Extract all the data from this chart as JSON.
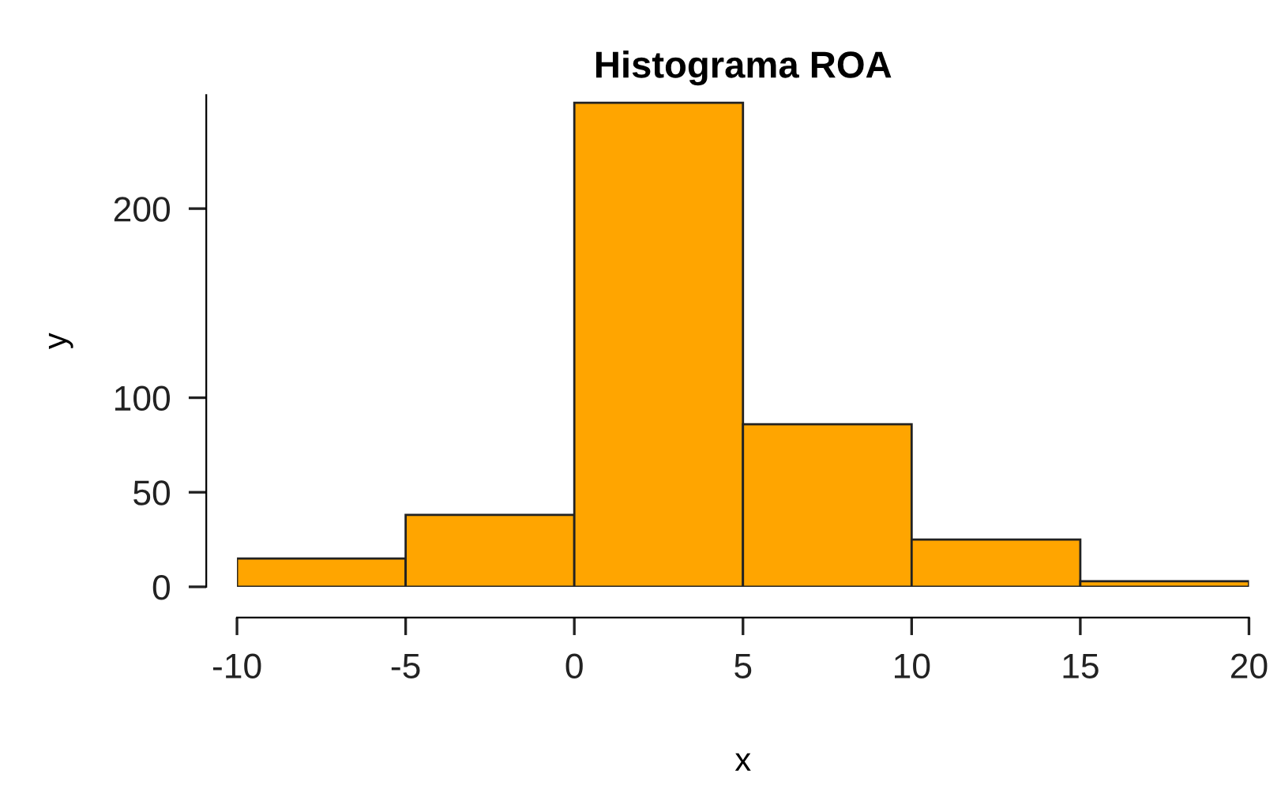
{
  "chart_data": {
    "type": "histogram",
    "title": "Histograma ROA",
    "xlabel": "x",
    "ylabel": "y",
    "bins": [
      -10,
      -5,
      0,
      5,
      10,
      15,
      20
    ],
    "values": [
      15,
      38,
      256,
      86,
      25,
      3
    ],
    "color": "#ffa500",
    "xlim": [
      -10,
      20
    ],
    "ylim": [
      0,
      260
    ],
    "xticks": [
      -10,
      -5,
      0,
      5,
      10,
      15,
      20
    ],
    "yticks": [
      0,
      50,
      100,
      200
    ],
    "grid": false,
    "legend": false
  }
}
